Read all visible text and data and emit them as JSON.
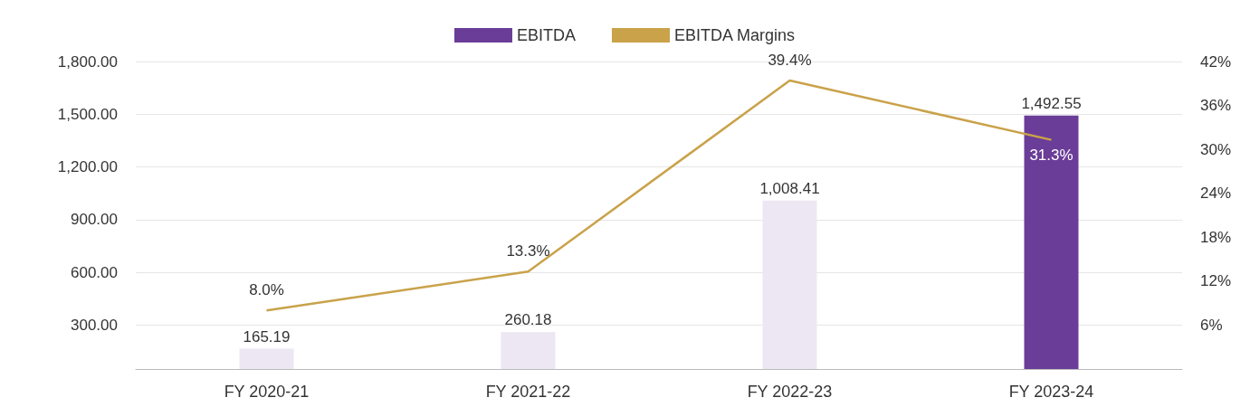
{
  "chart_data": {
    "type": "bar",
    "categories": [
      "FY 2020-21",
      "FY 2021-22",
      "FY 2022-23",
      "FY 2023-24"
    ],
    "series": [
      {
        "name": "EBITDA",
        "color": "#6a3d98",
        "colors": [
          "#ede7f4",
          "#ede7f4",
          "#ede7f4",
          "#6a3d98"
        ],
        "values": [
          165.19,
          260.18,
          1008.41,
          1492.55
        ],
        "value_labels": [
          "165.19",
          "260.18",
          "1,008.41",
          "1,492.55"
        ]
      },
      {
        "name": "EBITDA Margins",
        "type": "line",
        "axis": "y2",
        "color": "#c9a24a",
        "values": [
          8.0,
          13.3,
          39.4,
          31.3
        ],
        "value_labels": [
          "8.0%",
          "13.3%",
          "39.4%",
          "31.3%"
        ]
      }
    ],
    "ylim": [
      50,
      1800
    ],
    "yticks": [
      {
        "value": 300,
        "label": "300.00"
      },
      {
        "value": 600,
        "label": "600.00"
      },
      {
        "value": 900,
        "label": "900.00"
      },
      {
        "value": 1200,
        "label": "1,200.00"
      },
      {
        "value": 1500,
        "label": "1,500.00"
      },
      {
        "value": 1800,
        "label": "1,800.00"
      }
    ],
    "y2lim": [
      0,
      42
    ],
    "y2ticks": [
      {
        "value": 6,
        "label": "6%"
      },
      {
        "value": 12,
        "label": "12%"
      },
      {
        "value": 18,
        "label": "18%"
      },
      {
        "value": 24,
        "label": "24%"
      },
      {
        "value": 30,
        "label": "30%"
      },
      {
        "value": 36,
        "label": "36%"
      },
      {
        "value": 42,
        "label": "42%"
      }
    ],
    "grid": "y",
    "legend": "top",
    "marker": "none",
    "line_style": "solid"
  }
}
